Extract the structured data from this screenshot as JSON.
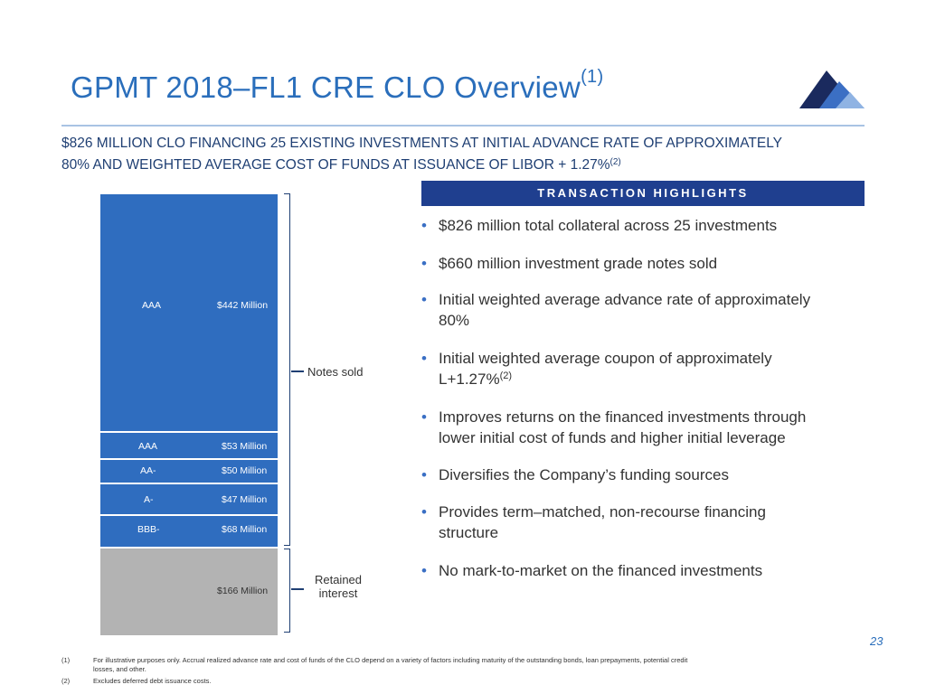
{
  "title": {
    "text": "GPMT 2018–FL1 CRE CLO Overview",
    "sup": "(1)"
  },
  "subheading": {
    "line1": "$826 MILLION CLO FINANCING 25 EXISTING INVESTMENTS AT INITIAL ADVANCE RATE OF APPROXIMATELY",
    "line2": "80% AND WEIGHTED AVERAGE COST OF FUNDS AT ISSUANCE OF LIBOR + 1.27%",
    "sup": "(2)"
  },
  "highlights": {
    "header": "TRANSACTION HIGHLIGHTS",
    "items": [
      {
        "text": "$826 million total collateral across 25 investments"
      },
      {
        "text": "$660 million investment grade notes sold"
      },
      {
        "line1": "Initial weighted average advance rate of approximately",
        "line2": "80%"
      },
      {
        "line1": "Initial weighted average coupon of approximately",
        "line2": "L+1.27%",
        "sup": "(2)"
      },
      {
        "line1": "Improves returns on the financed investments through",
        "line2": "lower initial cost of funds and higher initial leverage"
      },
      {
        "text": "Diversifies the Company’s funding sources"
      },
      {
        "line1": "Provides term–matched, non-recourse financing",
        "line2": "structure"
      },
      {
        "text": "No mark-to-market on the financed investments"
      }
    ]
  },
  "capital_stack": {
    "tranches": [
      {
        "rating": "AAA",
        "amount": "$442 Million",
        "value_m": 442,
        "color": "#2f6dbf"
      },
      {
        "rating": "AAA",
        "amount": "$53 Million",
        "value_m": 53,
        "color": "#2f6dbf"
      },
      {
        "rating": "AA-",
        "amount": "$50 Million",
        "value_m": 50,
        "color": "#2f6dbf"
      },
      {
        "rating": "A-",
        "amount": "$47 Million",
        "value_m": 47,
        "color": "#2f6dbf"
      },
      {
        "rating": "BBB-",
        "amount": "$68 Million",
        "value_m": 68,
        "color": "#2f6dbf"
      },
      {
        "rating": "",
        "amount": "$166 Million",
        "value_m": 166,
        "color": "#b3b3b3"
      }
    ],
    "notes_sold_label": "Notes sold",
    "retained_label_1": "Retained",
    "retained_label_2": "interest"
  },
  "page_number": "23",
  "footnotes": [
    {
      "num": "(1)",
      "line1": "For illustrative purposes only.  Accrual realized advance rate and cost of funds of the CLO depend on a variety of factors including maturity of the outstanding bonds, loan prepayments, potential credit",
      "line2": "losses, and other."
    },
    {
      "num": "(2)",
      "line1": "Excludes deferred debt issuance costs.",
      "line2": ""
    }
  ]
}
